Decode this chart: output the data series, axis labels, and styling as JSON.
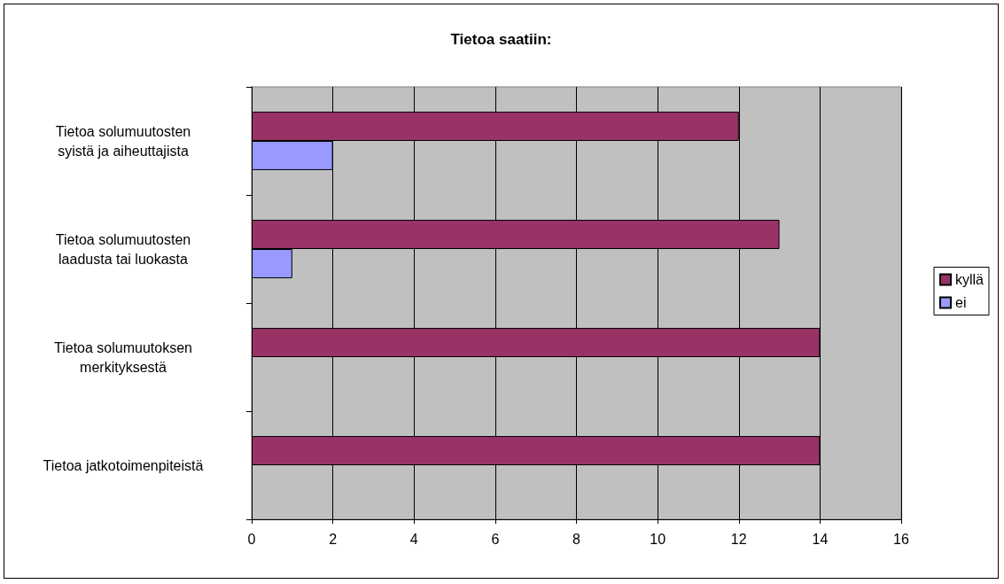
{
  "chart_data": {
    "type": "bar",
    "orientation": "horizontal",
    "title": "Tietoa saatiin:",
    "categories": [
      "Tietoa solumuutosten\nsyistä ja aiheuttajista",
      "Tietoa solumuutosten\nlaadusta tai luokasta",
      "Tietoa solumuutoksen\nmerkityksestä",
      "Tietoa jatkotoimenpiteistä"
    ],
    "series": [
      {
        "name": "kyllä",
        "color": "#993366",
        "values": [
          12,
          13,
          14,
          14
        ]
      },
      {
        "name": "ei",
        "color": "#9999ff",
        "values": [
          2,
          1,
          null,
          null
        ]
      }
    ],
    "xlim": [
      0,
      16
    ],
    "xticks": [
      0,
      2,
      4,
      6,
      8,
      10,
      12,
      14,
      16
    ],
    "grid": "x",
    "legend": "right"
  }
}
